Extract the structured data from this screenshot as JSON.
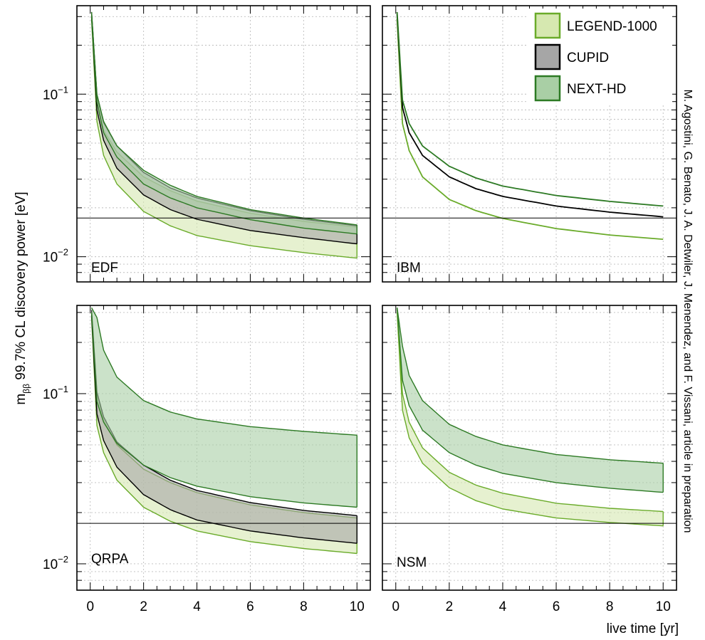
{
  "figure": {
    "ylabel_main": "m",
    "ylabel_sub": "ββ",
    "ylabel_rest": " 99.7% CL discovery power [eV]",
    "xlabel": "live time [yr]",
    "side_note": "M. Agostini, G. Benato, J. A. Detwiler, J. Menendez, and F. Vissani, article in preparation",
    "legend": [
      {
        "name": "LEGEND-1000",
        "fill": "#d6e8b0",
        "stroke": "#6aab2a"
      },
      {
        "name": "CUPID",
        "fill": "#a6a6a6",
        "stroke": "#000000"
      },
      {
        "name": "NEXT-HD",
        "fill": "#a9cfa5",
        "stroke": "#2d7a24"
      }
    ]
  },
  "chart_data": [
    {
      "type": "area",
      "panel": "EDF",
      "xlim": [
        -0.5,
        10.5
      ],
      "ylim": [
        0.007,
        0.35
      ],
      "yscale": "log",
      "xticks": [
        "0",
        "2",
        "4",
        "6",
        "8",
        "10"
      ],
      "yticks": [
        {
          "value": 0.1,
          "base": "10",
          "exp": "−1"
        },
        {
          "value": 0.01,
          "base": "10",
          "exp": "−2"
        }
      ],
      "reference_line": 0.0173,
      "series": [
        {
          "name": "LEGEND-1000",
          "x": [
            0.05,
            0.25,
            0.5,
            1,
            2,
            3,
            4,
            6,
            8,
            10
          ],
          "lower": [
            0.29,
            0.068,
            0.042,
            0.028,
            0.019,
            0.0155,
            0.0135,
            0.0117,
            0.0106,
            0.0098
          ],
          "upper": [
            0.31,
            0.09,
            0.06,
            0.044,
            0.031,
            0.0255,
            0.022,
            0.0185,
            0.0165,
            0.0152
          ]
        },
        {
          "name": "CUPID",
          "x": [
            0.05,
            0.25,
            0.5,
            1,
            2,
            3,
            4,
            6,
            8,
            10
          ],
          "lower": [
            0.3,
            0.08,
            0.052,
            0.035,
            0.024,
            0.0195,
            0.017,
            0.0145,
            0.0131,
            0.012
          ],
          "upper": [
            0.32,
            0.098,
            0.067,
            0.048,
            0.033,
            0.0265,
            0.023,
            0.0192,
            0.017,
            0.0155
          ]
        },
        {
          "name": "NEXT-HD",
          "x": [
            0.05,
            0.25,
            0.5,
            1,
            2,
            3,
            4,
            6,
            8,
            10
          ],
          "lower": [
            0.3,
            0.09,
            0.058,
            0.041,
            0.028,
            0.023,
            0.02,
            0.0169,
            0.015,
            0.0138
          ],
          "upper": [
            0.32,
            0.1,
            0.068,
            0.048,
            0.034,
            0.0275,
            0.0235,
            0.0195,
            0.0173,
            0.0157
          ]
        }
      ]
    },
    {
      "type": "line",
      "panel": "IBM",
      "xlim": [
        -0.5,
        10.5
      ],
      "ylim": [
        0.007,
        0.35
      ],
      "yscale": "log",
      "xticks": [
        "0",
        "2",
        "4",
        "6",
        "8",
        "10"
      ],
      "reference_line": 0.0173,
      "series": [
        {
          "name": "LEGEND-1000",
          "x": [
            0.05,
            0.25,
            0.5,
            1,
            2,
            3,
            4,
            6,
            8,
            10
          ],
          "values": [
            0.29,
            0.066,
            0.045,
            0.031,
            0.0225,
            0.0192,
            0.0172,
            0.0149,
            0.0136,
            0.0128
          ]
        },
        {
          "name": "CUPID",
          "x": [
            0.05,
            0.25,
            0.5,
            1,
            2,
            3,
            4,
            6,
            8,
            10
          ],
          "values": [
            0.31,
            0.083,
            0.058,
            0.042,
            0.031,
            0.0262,
            0.0235,
            0.0205,
            0.0188,
            0.0176
          ]
        },
        {
          "name": "NEXT-HD",
          "x": [
            0.05,
            0.25,
            0.5,
            1,
            2,
            3,
            4,
            6,
            8,
            10
          ],
          "values": [
            0.32,
            0.092,
            0.066,
            0.048,
            0.036,
            0.0305,
            0.0272,
            0.0238,
            0.0219,
            0.0205
          ]
        }
      ]
    },
    {
      "type": "area",
      "panel": "QRPA",
      "xlim": [
        -0.5,
        10.5
      ],
      "ylim": [
        0.007,
        0.33
      ],
      "yscale": "log",
      "xticks": [
        "0",
        "2",
        "4",
        "6",
        "8",
        "10"
      ],
      "yticks": [
        {
          "value": 0.1,
          "base": "10",
          "exp": "−1"
        },
        {
          "value": 0.01,
          "base": "10",
          "exp": "−2"
        }
      ],
      "reference_line": 0.0173,
      "series": [
        {
          "name": "LEGEND-1000",
          "x": [
            0.05,
            0.25,
            0.5,
            1,
            2,
            3,
            4,
            6,
            8,
            10
          ],
          "lower": [
            0.28,
            0.065,
            0.045,
            0.031,
            0.0215,
            0.0178,
            0.0156,
            0.0135,
            0.0123,
            0.0115
          ],
          "upper": [
            0.3,
            0.1,
            0.07,
            0.05,
            0.036,
            0.03,
            0.0262,
            0.0222,
            0.02,
            0.0186
          ]
        },
        {
          "name": "CUPID",
          "x": [
            0.05,
            0.25,
            0.5,
            1,
            2,
            3,
            4,
            6,
            8,
            10
          ],
          "lower": [
            0.29,
            0.076,
            0.053,
            0.037,
            0.0255,
            0.0208,
            0.0181,
            0.0156,
            0.0142,
            0.0132
          ],
          "upper": [
            0.31,
            0.102,
            0.073,
            0.052,
            0.038,
            0.031,
            0.027,
            0.0229,
            0.0206,
            0.0192
          ]
        },
        {
          "name": "NEXT-HD",
          "x": [
            0.05,
            0.25,
            0.5,
            1,
            2,
            3,
            4,
            6,
            8,
            10
          ],
          "lower": [
            0.3,
            0.09,
            0.068,
            0.051,
            0.038,
            0.0321,
            0.0286,
            0.0248,
            0.0228,
            0.0215
          ],
          "upper": [
            0.32,
            0.28,
            0.18,
            0.125,
            0.091,
            0.078,
            0.071,
            0.064,
            0.06,
            0.057
          ]
        }
      ]
    },
    {
      "type": "area",
      "panel": "NSM",
      "xlim": [
        -0.5,
        10.5
      ],
      "ylim": [
        0.007,
        0.33
      ],
      "yscale": "log",
      "xticks": [
        "0",
        "2",
        "4",
        "6",
        "8",
        "10"
      ],
      "reference_line": 0.0173,
      "series": [
        {
          "name": "LEGEND-1000",
          "x": [
            0.05,
            0.25,
            0.5,
            1,
            2,
            3,
            4,
            6,
            8,
            10
          ],
          "lower": [
            0.3,
            0.08,
            0.055,
            0.039,
            0.028,
            0.0235,
            0.021,
            0.0186,
            0.0175,
            0.0167
          ],
          "upper": [
            0.32,
            0.1,
            0.068,
            0.048,
            0.0345,
            0.029,
            0.026,
            0.0227,
            0.0212,
            0.0203
          ]
        },
        {
          "name": "NEXT-HD",
          "x": [
            0.05,
            0.25,
            0.5,
            1,
            2,
            3,
            4,
            6,
            8,
            10
          ],
          "lower": [
            0.32,
            0.12,
            0.085,
            0.061,
            0.045,
            0.038,
            0.034,
            0.03,
            0.0278,
            0.0263
          ],
          "upper": [
            0.32,
            0.19,
            0.128,
            0.091,
            0.066,
            0.056,
            0.05,
            0.0439,
            0.0409,
            0.039
          ]
        }
      ]
    }
  ]
}
